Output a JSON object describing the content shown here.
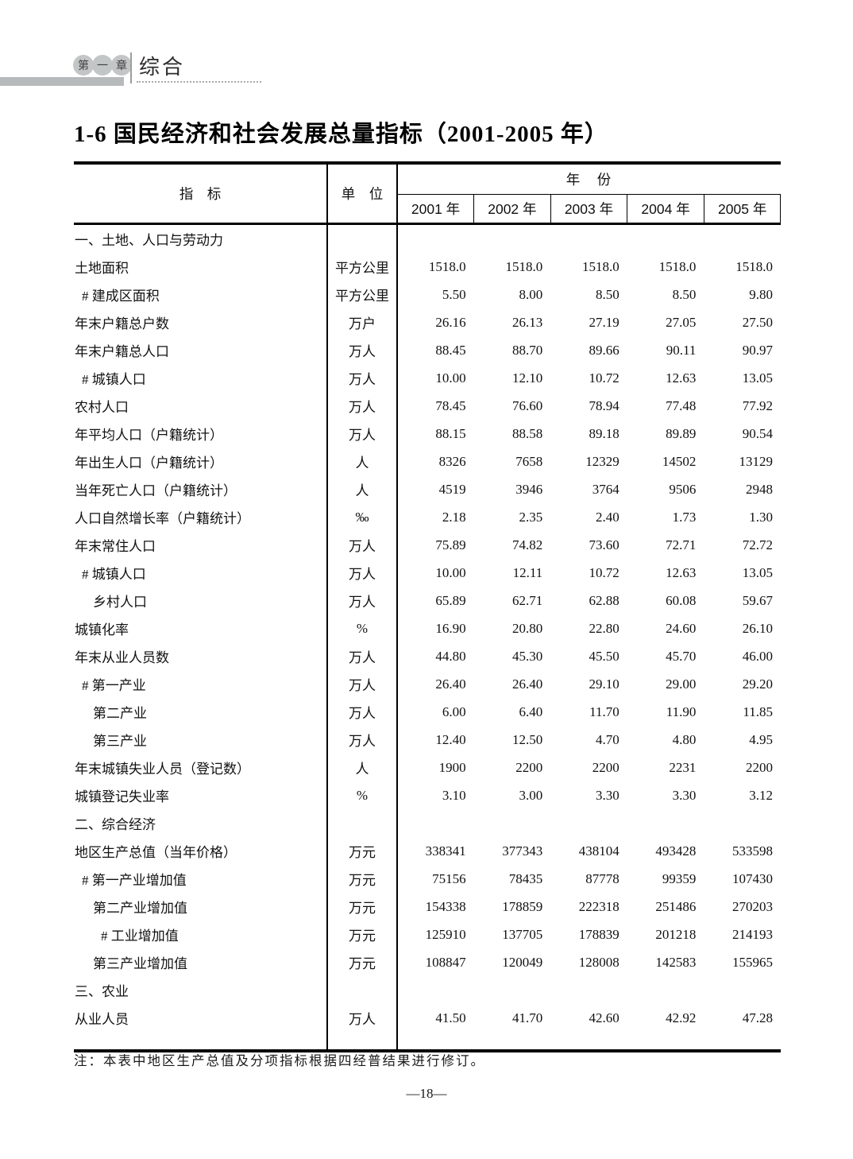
{
  "header": {
    "chapter_badge_chars": [
      "第",
      "一",
      "章"
    ],
    "section_title": "综合"
  },
  "title": "1-6  国民经济和社会发展总量指标（2001-2005 年）",
  "table": {
    "col_headers": {
      "indicator": "指　标",
      "unit": "单　位",
      "year_group": "年　份"
    },
    "years": [
      "2001 年",
      "2002 年",
      "2003 年",
      "2004 年",
      "2005 年"
    ],
    "rows": [
      {
        "label": "一、土地、人口与劳动力",
        "indent": 0,
        "section": true,
        "unit": "",
        "values": []
      },
      {
        "label": "土地面积",
        "indent": 0,
        "unit": "平方公里",
        "values": [
          "1518.0",
          "1518.0",
          "1518.0",
          "1518.0",
          "1518.0"
        ]
      },
      {
        "label": "# 建成区面积",
        "indent": 1,
        "unit": "平方公里",
        "values": [
          "5.50",
          "8.00",
          "8.50",
          "8.50",
          "9.80"
        ]
      },
      {
        "label": "年末户籍总户数",
        "indent": 0,
        "unit": "万户",
        "values": [
          "26.16",
          "26.13",
          "27.19",
          "27.05",
          "27.50"
        ]
      },
      {
        "label": "年末户籍总人口",
        "indent": 0,
        "unit": "万人",
        "values": [
          "88.45",
          "88.70",
          "89.66",
          "90.11",
          "90.97"
        ]
      },
      {
        "label": "# 城镇人口",
        "indent": 1,
        "unit": "万人",
        "values": [
          "10.00",
          "12.10",
          "10.72",
          "12.63",
          "13.05"
        ]
      },
      {
        "label": "农村人口",
        "indent": 0,
        "unit": "万人",
        "values": [
          "78.45",
          "76.60",
          "78.94",
          "77.48",
          "77.92"
        ]
      },
      {
        "label": "年平均人口（户籍统计）",
        "indent": 0,
        "unit": "万人",
        "values": [
          "88.15",
          "88.58",
          "89.18",
          "89.89",
          "90.54"
        ]
      },
      {
        "label": "年出生人口（户籍统计）",
        "indent": 0,
        "unit": "人",
        "values": [
          "8326",
          "7658",
          "12329",
          "14502",
          "13129"
        ]
      },
      {
        "label": "当年死亡人口（户籍统计）",
        "indent": 0,
        "unit": "人",
        "values": [
          "4519",
          "3946",
          "3764",
          "9506",
          "2948"
        ]
      },
      {
        "label": "人口自然增长率（户籍统计）",
        "indent": 0,
        "unit": "‰",
        "values": [
          "2.18",
          "2.35",
          "2.40",
          "1.73",
          "1.30"
        ]
      },
      {
        "label": "年末常住人口",
        "indent": 0,
        "unit": "万人",
        "values": [
          "75.89",
          "74.82",
          "73.60",
          "72.71",
          "72.72"
        ]
      },
      {
        "label": "# 城镇人口",
        "indent": 1,
        "unit": "万人",
        "values": [
          "10.00",
          "12.11",
          "10.72",
          "12.63",
          "13.05"
        ]
      },
      {
        "label": "乡村人口",
        "indent": 2,
        "unit": "万人",
        "values": [
          "65.89",
          "62.71",
          "62.88",
          "60.08",
          "59.67"
        ]
      },
      {
        "label": "城镇化率",
        "indent": 0,
        "unit": "%",
        "values": [
          "16.90",
          "20.80",
          "22.80",
          "24.60",
          "26.10"
        ]
      },
      {
        "label": "年末从业人员数",
        "indent": 0,
        "unit": "万人",
        "values": [
          "44.80",
          "45.30",
          "45.50",
          "45.70",
          "46.00"
        ]
      },
      {
        "label": "# 第一产业",
        "indent": 1,
        "unit": "万人",
        "values": [
          "26.40",
          "26.40",
          "29.10",
          "29.00",
          "29.20"
        ]
      },
      {
        "label": "第二产业",
        "indent": 2,
        "unit": "万人",
        "values": [
          "6.00",
          "6.40",
          "11.70",
          "11.90",
          "11.85"
        ]
      },
      {
        "label": "第三产业",
        "indent": 2,
        "unit": "万人",
        "values": [
          "12.40",
          "12.50",
          "4.70",
          "4.80",
          "4.95"
        ]
      },
      {
        "label": "年末城镇失业人员（登记数）",
        "indent": 0,
        "unit": "人",
        "values": [
          "1900",
          "2200",
          "2200",
          "2231",
          "2200"
        ]
      },
      {
        "label": "城镇登记失业率",
        "indent": 0,
        "unit": "%",
        "values": [
          "3.10",
          "3.00",
          "3.30",
          "3.30",
          "3.12"
        ]
      },
      {
        "label": "二、综合经济",
        "indent": 0,
        "section": true,
        "unit": "",
        "values": []
      },
      {
        "label": "地区生产总值（当年价格）",
        "indent": 0,
        "unit": "万元",
        "values": [
          "338341",
          "377343",
          "438104",
          "493428",
          "533598"
        ]
      },
      {
        "label": "# 第一产业增加值",
        "indent": 1,
        "unit": "万元",
        "values": [
          "75156",
          "78435",
          "87778",
          "99359",
          "107430"
        ]
      },
      {
        "label": "第二产业增加值",
        "indent": 2,
        "unit": "万元",
        "values": [
          "154338",
          "178859",
          "222318",
          "251486",
          "270203"
        ]
      },
      {
        "label": "# 工业增加值",
        "indent": 3,
        "unit": "万元",
        "values": [
          "125910",
          "137705",
          "178839",
          "201218",
          "214193"
        ]
      },
      {
        "label": "第三产业增加值",
        "indent": 2,
        "unit": "万元",
        "values": [
          "108847",
          "120049",
          "128008",
          "142583",
          "155965"
        ]
      },
      {
        "label": "三、农业",
        "indent": 0,
        "section": true,
        "unit": "",
        "values": []
      },
      {
        "label": "从业人员",
        "indent": 0,
        "unit": "万人",
        "values": [
          "41.50",
          "41.70",
          "42.60",
          "42.92",
          "47.28"
        ]
      }
    ]
  },
  "note": "注：本表中地区生产总值及分项指标根据四经普结果进行修订。",
  "page_number": "—18—"
}
